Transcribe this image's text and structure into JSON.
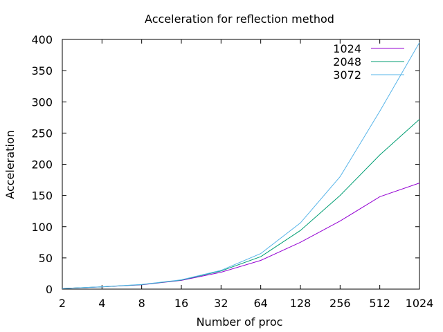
{
  "chart_data": {
    "type": "line",
    "title": "Acceleration for reflection method",
    "xlabel": "Number of proc",
    "ylabel": "Acceleration",
    "x_scale": "log2",
    "x": [
      2,
      4,
      8,
      16,
      32,
      64,
      128,
      256,
      512,
      1024
    ],
    "xticks": [
      "2",
      "4",
      "8",
      "16",
      "32",
      "64",
      "128",
      "256",
      "512",
      "1024"
    ],
    "ylim": [
      0,
      400
    ],
    "yticks": [
      "0",
      "50",
      "100",
      "150",
      "200",
      "250",
      "300",
      "350",
      "400"
    ],
    "grid": false,
    "legend_position": "top-right",
    "series": [
      {
        "name": "1024",
        "color": "#9400d3",
        "values": [
          1,
          3.5,
          7,
          14,
          27,
          46,
          75,
          109,
          148,
          170
        ]
      },
      {
        "name": "2048",
        "color": "#009e73",
        "values": [
          1,
          3.7,
          7.2,
          14.5,
          29,
          52,
          94,
          150,
          215,
          272
        ]
      },
      {
        "name": "3072",
        "color": "#56b4e9",
        "values": [
          1,
          3.8,
          7.4,
          15,
          30,
          57,
          106,
          180,
          285,
          395
        ]
      }
    ]
  }
}
